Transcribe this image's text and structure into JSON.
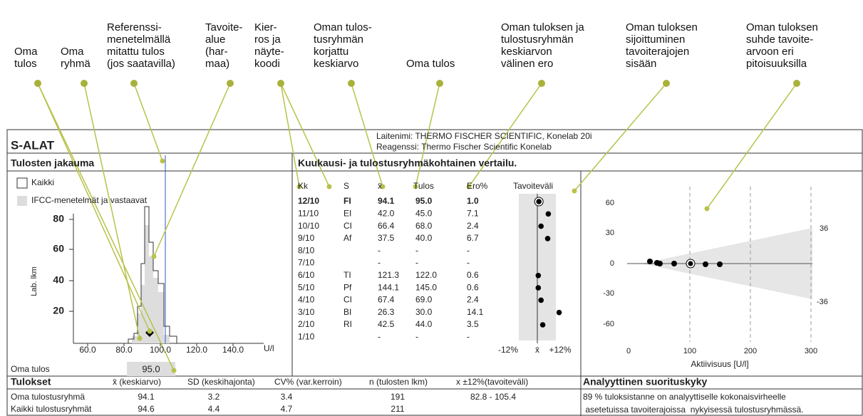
{
  "annotations": [
    {
      "lines": [
        "Oma",
        "tulos"
      ]
    },
    {
      "lines": [
        "Oma",
        "ryhmä"
      ]
    },
    {
      "lines": [
        "Referenssi-",
        "menetelmällä",
        "mitattu tulos",
        "(jos saatavilla)"
      ]
    },
    {
      "lines": [
        "Tavoite-",
        "alue",
        "(har-",
        "maa)"
      ]
    },
    {
      "lines": [
        "Kier-",
        "ros ja",
        "näyte-",
        "koodi"
      ]
    },
    {
      "lines": [
        "Oman tulos-",
        "tusryhmän",
        "korjattu",
        "keskiarvo"
      ]
    },
    {
      "lines": [
        "Oma tulos"
      ]
    },
    {
      "lines": [
        "Oman tuloksen ja",
        "tulostusryhmän",
        "keskiarvon",
        "välinen ero"
      ]
    },
    {
      "lines": [
        "Oman tuloksen",
        "sijoittuminen",
        "tavoiterajojen",
        "sisään"
      ]
    },
    {
      "lines": [
        "Oman tuloksen",
        "suhde tavoite-",
        "arvoon eri",
        "pitoisuuksilla"
      ]
    }
  ],
  "header": {
    "title": "S-ALAT",
    "device": "Laitenimi:  THERMO FISCHER SCIENTIFIC,  Konelab 20i",
    "reagent": "Reagenssi:  Thermo Fischer Scientific Konelab"
  },
  "histogram": {
    "title": "Tulosten jakauma",
    "legend": [
      "Kaikki",
      "IFCC-menetelmät ja vastaavat"
    ],
    "ylabel": "Lab. lkm",
    "yticks": [
      "80",
      "60",
      "40",
      "20"
    ],
    "xticks": [
      "60.0",
      "80.0",
      "100.0",
      "120.0",
      "140.0"
    ],
    "xunit": "U/l",
    "own_label": "Oma tulos",
    "own_value": "95.0"
  },
  "comparison": {
    "title": "Kuukausi- ja tulostusryhmäkohtainen vertailu.",
    "columns": [
      "Kk",
      "S",
      "x̄",
      "Tulos",
      "Ero%",
      "Tavoiteväli"
    ],
    "rows": [
      [
        "12/10",
        "FI",
        "94.1",
        "95.0",
        "1.0"
      ],
      [
        "11/10",
        "EI",
        "42.0",
        "45.0",
        "7.1"
      ],
      [
        "10/10",
        "CI",
        "66.4",
        "68.0",
        "2.4"
      ],
      [
        "9/10",
        "Af",
        "37.5",
        "40.0",
        "6.7"
      ],
      [
        "8/10",
        "",
        "-",
        "-",
        "-"
      ],
      [
        "7/10",
        "",
        "-",
        "-",
        "-"
      ],
      [
        "6/10",
        "TI",
        "121.3",
        "122.0",
        "0.6"
      ],
      [
        "5/10",
        "Pf",
        "144.1",
        "145.0",
        "0.6"
      ],
      [
        "4/10",
        "CI",
        "67.4",
        "69.0",
        "2.4"
      ],
      [
        "3/10",
        "BI",
        "26.3",
        "30.0",
        "14.1"
      ],
      [
        "2/10",
        "RI",
        "42.5",
        "44.0",
        "3.5"
      ],
      [
        "1/10",
        "",
        "-",
        "-",
        "-"
      ]
    ],
    "band_labels": [
      "-12%",
      "x̄",
      "+12%"
    ]
  },
  "scatter": {
    "yticks": [
      "60",
      "30",
      "0",
      "-30",
      "-60"
    ],
    "xticks": [
      "0",
      "100",
      "200",
      "300"
    ],
    "xlabel": "Aktiivisuus [U/l]",
    "limits": [
      "36",
      "-36"
    ]
  },
  "results": {
    "title": "Tulokset",
    "columns": [
      "x̄ (keskiarvo)",
      "SD (keskihajonta)",
      "CV% (var.kerroin)",
      "n (tulosten lkm)",
      "x ±12%(tavoiteväli)"
    ],
    "rows": [
      [
        "Oma tulostusryhmä",
        "94.1",
        "3.2",
        "3.4",
        "191",
        "82.8 - 105.4"
      ],
      [
        "Kaikki tulostusryhmät",
        "94.6",
        "4.4",
        "4.7",
        "211"
      ]
    ]
  },
  "performance": {
    "title": "Analyyttinen suorituskyky",
    "lines": [
      "89 % tuloksistanne on  analyyttiselle kokonaisvirheelle",
      " asetetuissa tavoiterajoissa  nykyisessä tulostusryhmässä."
    ]
  }
}
